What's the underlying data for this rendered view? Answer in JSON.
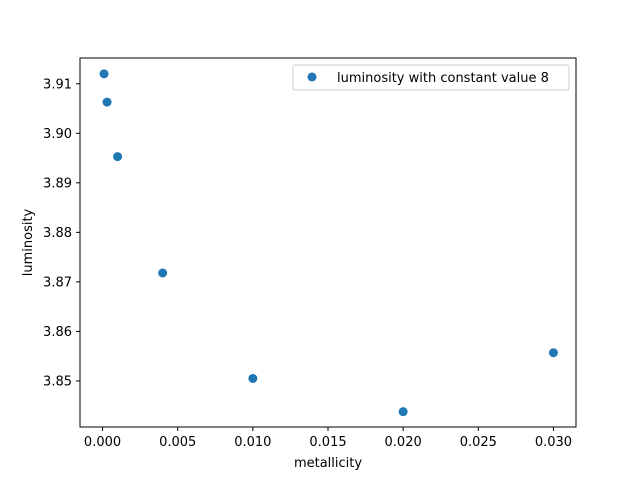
{
  "chart_data": {
    "type": "scatter",
    "xlabel": "metallicity",
    "ylabel": "luminosity",
    "xlim": [
      -0.0015,
      0.0315
    ],
    "ylim": [
      3.8407,
      3.9152
    ],
    "xticks": [
      0.0,
      0.005,
      0.01,
      0.015,
      0.02,
      0.025,
      0.03
    ],
    "xtick_labels": [
      "0.000",
      "0.005",
      "0.010",
      "0.015",
      "0.020",
      "0.025",
      "0.030"
    ],
    "yticks": [
      3.85,
      3.86,
      3.87,
      3.88,
      3.89,
      3.9,
      3.91
    ],
    "ytick_labels": [
      "3.85",
      "3.86",
      "3.87",
      "3.88",
      "3.89",
      "3.90",
      "3.91"
    ],
    "grid": false,
    "legend_position": "top-right",
    "series": [
      {
        "name": "luminosity with constant value 8",
        "color": "#1f77b4",
        "x": [
          0.0001,
          0.0003,
          0.001,
          0.004,
          0.01,
          0.02,
          0.03
        ],
        "y": [
          3.912,
          3.9063,
          3.8953,
          3.8718,
          3.8505,
          3.8438,
          3.8557
        ]
      }
    ]
  }
}
